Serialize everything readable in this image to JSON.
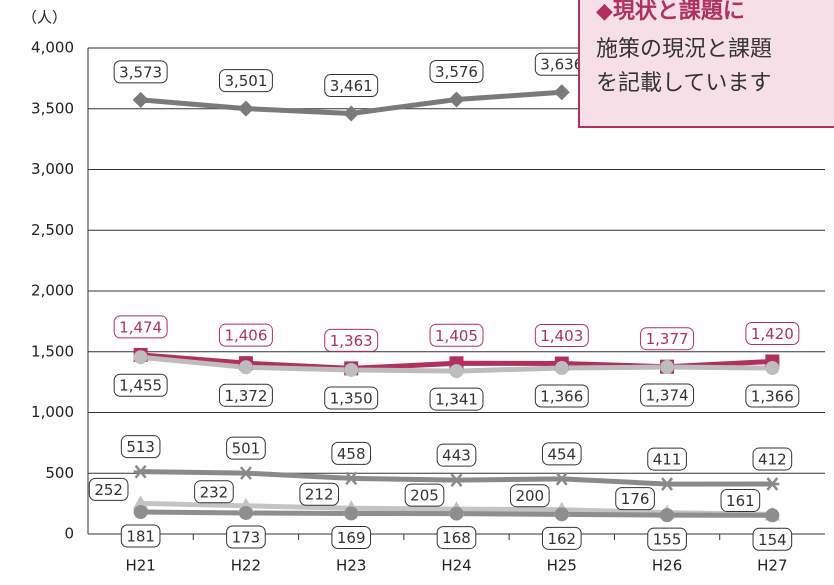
{
  "chart_data": {
    "type": "line",
    "y_unit": "（人）",
    "categories": [
      "H21",
      "H22",
      "H23",
      "H24",
      "H25",
      "H26",
      "H27"
    ],
    "ylim": [
      0,
      4000
    ],
    "yticks": [
      0,
      500,
      {
        "value": 1000,
        "label": "1,000"
      },
      {
        "value": 1500,
        "label": "1,500"
      },
      {
        "value": 2000,
        "label": "2,000"
      },
      {
        "value": 2500,
        "label": "2,500"
      },
      {
        "value": 3000,
        "label": "3,000"
      },
      {
        "value": 3500,
        "label": "3,500"
      },
      {
        "value": 4000,
        "label": "4,000"
      }
    ],
    "grid": true,
    "series": [
      {
        "color": "#7a7a7a",
        "marker": "diamond",
        "label_color": "#333333",
        "values": [
          3573,
          3501,
          3461,
          3576,
          3636,
          null,
          null
        ],
        "value_labels": [
          "3,573",
          "3,501",
          "3,461",
          "3,576",
          "3,636",
          null,
          null
        ]
      },
      {
        "color": "#b03060",
        "marker": "square",
        "label_color": "#b03060",
        "values": [
          1474,
          1406,
          1363,
          1405,
          1403,
          1377,
          1420
        ],
        "value_labels": [
          "1,474",
          "1,406",
          "1,363",
          "1,405",
          "1,403",
          "1,377",
          "1,420"
        ]
      },
      {
        "color": "#bdbdbd",
        "marker": "circle",
        "label_color": "#333333",
        "values": [
          1455,
          1372,
          1350,
          1341,
          1366,
          1374,
          1366
        ],
        "value_labels": [
          "1,455",
          "1,372",
          "1,350",
          "1,341",
          "1,366",
          "1,374",
          "1,366"
        ]
      },
      {
        "color": "#8a8a8a",
        "marker": "asterisk",
        "label_color": "#333333",
        "values": [
          513,
          501,
          458,
          443,
          454,
          411,
          412
        ]
      },
      {
        "color": "#c4c4c4",
        "marker": "triangle",
        "label_color": "#333333",
        "values": [
          252,
          232,
          212,
          205,
          200,
          176,
          161
        ]
      },
      {
        "color": "#8e8e8e",
        "marker": "circle",
        "label_color": "#333333",
        "values": [
          181,
          173,
          169,
          168,
          162,
          155,
          154
        ]
      }
    ]
  },
  "callout": {
    "title": "◆現状と課題に",
    "lines": [
      "施策の現況と課題",
      "を記載しています"
    ]
  }
}
